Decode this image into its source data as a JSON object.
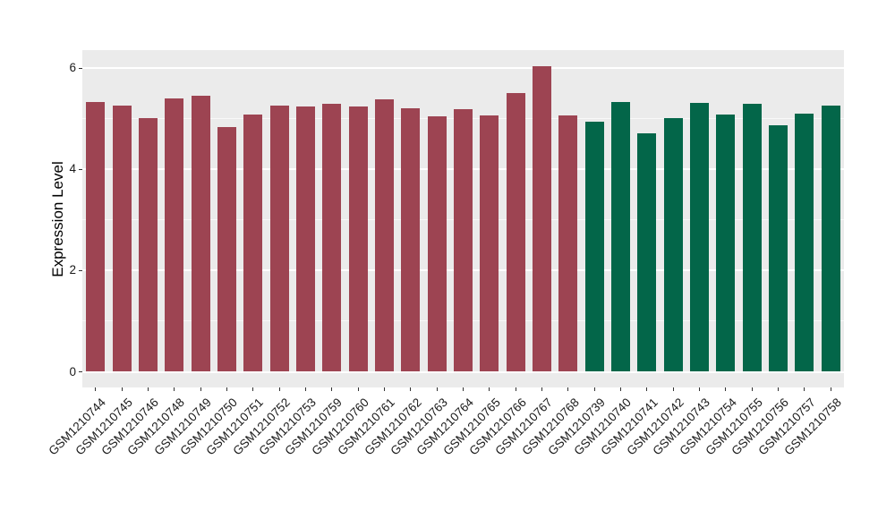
{
  "chart_data": {
    "type": "bar",
    "title": "",
    "xlabel": "",
    "ylabel": "Expression Level",
    "ylim": [
      0,
      6.36
    ],
    "yticks": [
      0,
      2,
      4,
      6
    ],
    "yticks_minor": [
      1,
      3,
      5
    ],
    "grid": "major-and-minor-horizontal",
    "legend_position": "none",
    "panel_background": "#EBEBEB",
    "grid_color": "#FFFFFF",
    "axis_text_color": "#1a1a1a",
    "group_colors": {
      "groupA": "#9D4452",
      "groupB": "#036649"
    },
    "categories": [
      "GSM1210744",
      "GSM1210745",
      "GSM1210746",
      "GSM1210748",
      "GSM1210749",
      "GSM1210750",
      "GSM1210751",
      "GSM1210752",
      "GSM1210753",
      "GSM1210759",
      "GSM1210760",
      "GSM1210761",
      "GSM1210762",
      "GSM1210763",
      "GSM1210764",
      "GSM1210765",
      "GSM1210766",
      "GSM1210767",
      "GSM1210768",
      "GSM1210739",
      "GSM1210740",
      "GSM1210741",
      "GSM1210742",
      "GSM1210743",
      "GSM1210754",
      "GSM1210755",
      "GSM1210756",
      "GSM1210757",
      "GSM1210758"
    ],
    "values": [
      5.33,
      5.26,
      5.01,
      5.41,
      5.45,
      4.83,
      5.09,
      5.26,
      5.25,
      5.29,
      5.24,
      5.38,
      5.21,
      5.04,
      5.19,
      5.06,
      5.51,
      6.04,
      5.06,
      4.94,
      5.34,
      4.72,
      5.01,
      5.31,
      5.08,
      5.29,
      4.87,
      5.1,
      5.26
    ],
    "bar_groups": [
      "groupA",
      "groupA",
      "groupA",
      "groupA",
      "groupA",
      "groupA",
      "groupA",
      "groupA",
      "groupA",
      "groupA",
      "groupA",
      "groupA",
      "groupA",
      "groupA",
      "groupA",
      "groupA",
      "groupA",
      "groupA",
      "groupA",
      "groupB",
      "groupB",
      "groupB",
      "groupB",
      "groupB",
      "groupB",
      "groupB",
      "groupB",
      "groupB",
      "groupB"
    ]
  }
}
